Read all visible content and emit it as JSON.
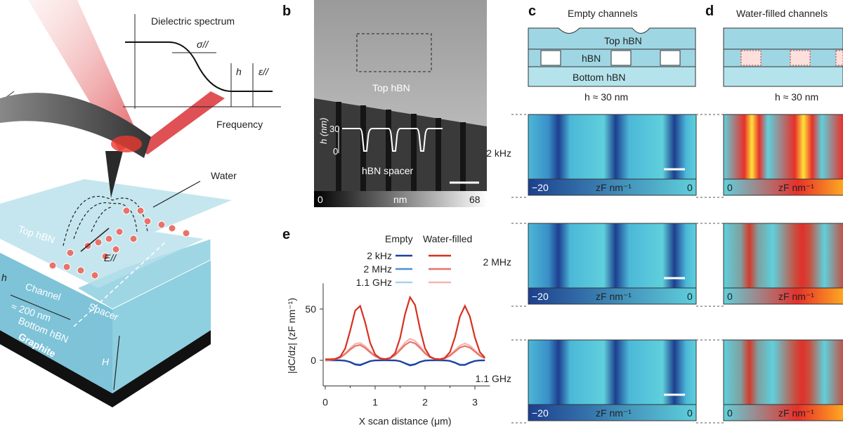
{
  "panels": {
    "b": "b",
    "c": "c",
    "d": "d",
    "e": "e"
  },
  "panel_a": {
    "spectrum_title": "Dielectric spectrum",
    "sigma": "σ//",
    "h": "h",
    "eps": "ε//",
    "frequency": "Frequency",
    "water": "Water",
    "top_hbn": "Top hBN",
    "field": "E//",
    "h_small": "h",
    "channel": "Channel",
    "width": "≈ 200 nm",
    "spacer": "Spacer",
    "bottom_hbn": "Bottom hBN",
    "graphite": "Graphite",
    "H": "H"
  },
  "panel_b": {
    "top_hbn": "Top hBN",
    "axis_label": "h (nm)",
    "tick_30": "30",
    "tick_0": "0",
    "spacer": "hBN spacer",
    "colorbar": {
      "min": "0",
      "unit": "nm",
      "max": "68"
    }
  },
  "panel_c": {
    "title": "Empty channels",
    "top_hbn": "Top hBN",
    "hbn": "hBN",
    "bottom_hbn": "Bottom hBN",
    "h": "h ≈ 30 nm",
    "rows": [
      {
        "freq": "2 kHz",
        "cb_min": "−20",
        "cb_unit": "zF nm⁻¹",
        "cb_max": "0"
      },
      {
        "freq": "2 MHz",
        "cb_min": "−20",
        "cb_unit": "zF nm⁻¹",
        "cb_max": "0"
      },
      {
        "freq": "1.1 GHz",
        "cb_min": "−20",
        "cb_unit": "zF nm⁻¹",
        "cb_max": "0"
      }
    ]
  },
  "panel_d": {
    "title": "Water-filled channels",
    "h": "h ≈ 30 nm",
    "rows": [
      {
        "cb_min": "0",
        "cb_unit": "zF nm⁻¹"
      },
      {
        "cb_min": "0",
        "cb_unit": "zF nm⁻¹"
      },
      {
        "cb_min": "0",
        "cb_unit": "zF nm⁻¹"
      }
    ]
  },
  "colors": {
    "empty_colormap": [
      "#1d3f8f",
      "#5fd0dc"
    ],
    "water_colormap": [
      "#5fd0dc",
      "#e8302a",
      "#ffe23a"
    ]
  },
  "chart_data": {
    "type": "line",
    "xlabel": "X scan distance (μm)",
    "ylabel": "|dC/dz| (zF nm⁻¹)",
    "xlim": [
      0,
      3.3
    ],
    "ylim": [
      -25,
      75
    ],
    "xticks": [
      "0",
      "1",
      "2",
      "3"
    ],
    "yticks": [
      "0",
      "50"
    ],
    "legend": {
      "col_empty": "Empty",
      "col_water": "Water-filled",
      "placement": "top-right"
    },
    "x": [
      0,
      0.1,
      0.2,
      0.3,
      0.4,
      0.5,
      0.6,
      0.7,
      0.8,
      0.9,
      1.0,
      1.1,
      1.2,
      1.3,
      1.4,
      1.5,
      1.6,
      1.7,
      1.8,
      1.9,
      2.0,
      2.1,
      2.2,
      2.3,
      2.4,
      2.5,
      2.6,
      2.7,
      2.8,
      2.9,
      3.0,
      3.1,
      3.2
    ],
    "series": [
      {
        "name": "2 kHz",
        "group": "Water-filled",
        "color": "#d7301f",
        "values": [
          1,
          1,
          1.4,
          3.5,
          11.5,
          29,
          48.5,
          53,
          37,
          17,
          5.7,
          2,
          1.2,
          2.2,
          7,
          21.7,
          45,
          61.5,
          54,
          30.7,
          11.7,
          3.5,
          1.4,
          1,
          2.5,
          8,
          22.4,
          42.7,
          53,
          42.7,
          22.4,
          8,
          2.5
        ]
      },
      {
        "name": "2 MHz",
        "group": "Water-filled",
        "color": "#e8726a",
        "values": [
          0,
          0.3,
          1,
          2.7,
          6,
          10.5,
          14,
          15,
          12,
          7.8,
          4,
          1.7,
          1,
          2,
          5,
          9.9,
          15,
          18,
          16.6,
          12,
          6.8,
          3,
          1.2,
          0.9,
          1.9,
          4.5,
          8.5,
          12.4,
          14,
          12.4,
          8.5,
          4.5,
          1.9
        ]
      },
      {
        "name": "1.1 GHz",
        "group": "Water-filled",
        "color": "#f4b7b0",
        "values": [
          0,
          0.3,
          1.2,
          3.1,
          6.9,
          12,
          16,
          17,
          13.8,
          9,
          4.6,
          2,
          1.2,
          2.3,
          5.8,
          11.4,
          17.3,
          21,
          19,
          13.8,
          7.8,
          3.5,
          1.4,
          1,
          2.2,
          5.2,
          9.8,
          14.3,
          16.5,
          14.3,
          9.8,
          5.2,
          2.2
        ]
      },
      {
        "name": "2 kHz",
        "group": "Empty",
        "color": "#1f3f9e",
        "values": [
          0,
          0,
          0,
          0,
          -0.4,
          -1.8,
          -4.2,
          -4.8,
          -2.8,
          -0.8,
          -0.1,
          0,
          0,
          0,
          -0.1,
          -0.9,
          -3,
          -5,
          -4,
          -1.6,
          -0.3,
          0,
          0,
          0,
          -0.1,
          -0.6,
          -2.3,
          -4.6,
          -4.6,
          -2.3,
          -0.6,
          -0.1,
          0
        ]
      },
      {
        "name": "2 MHz",
        "group": "Empty",
        "color": "#4a90d9",
        "values": [
          0,
          0,
          0,
          0,
          -0.4,
          -1.6,
          -3.8,
          -4.4,
          -2.6,
          -0.8,
          -0.1,
          0,
          0,
          0,
          -0.1,
          -0.9,
          -2.8,
          -4.6,
          -3.7,
          -1.5,
          -0.3,
          0,
          0,
          0,
          -0.1,
          -0.6,
          -2.2,
          -4.3,
          -4.3,
          -2.2,
          -0.6,
          -0.1,
          0
        ]
      },
      {
        "name": "1.1 GHz",
        "group": "Empty",
        "color": "#a9d2f0",
        "values": [
          0,
          0,
          0,
          0,
          -0.3,
          -1.4,
          -3.4,
          -4,
          -2.4,
          -0.7,
          -0.1,
          0,
          0,
          0,
          -0.1,
          -0.8,
          -2.6,
          -4.3,
          -3.5,
          -1.4,
          -0.3,
          0,
          0,
          0,
          -0.1,
          -0.5,
          -2,
          -4,
          -4,
          -2,
          -0.5,
          -0.1,
          0
        ]
      }
    ]
  }
}
